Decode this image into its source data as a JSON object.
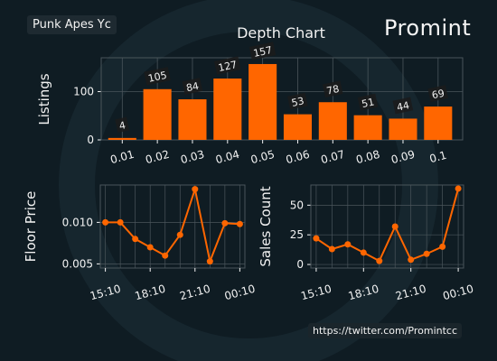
{
  "collection_label": "Punk Apes Yc",
  "brand": "Promint",
  "twitter_url": "https://twitter.com/Promintcc",
  "colors": {
    "accent": "#ff6600",
    "background": "#0f1c23",
    "text": "#f2f2f2",
    "grid": "#4a555b"
  },
  "chart_data": [
    {
      "type": "bar",
      "title": "Depth Chart",
      "ylabel": "Listings",
      "xlabel": "",
      "categories": [
        "0.01",
        "0.02",
        "0.03",
        "0.04",
        "0.05",
        "0.06",
        "0.07",
        "0.08",
        "0.09",
        "0.1"
      ],
      "values": [
        4,
        105,
        84,
        127,
        157,
        53,
        78,
        51,
        44,
        69
      ],
      "ylim": [
        0,
        170
      ],
      "yticks": [
        0,
        100
      ],
      "grid": true
    },
    {
      "type": "line",
      "title": "",
      "ylabel": "Floor Price",
      "xlabel": "",
      "x": [
        "15:10",
        "16:10",
        "17:10",
        "18:10",
        "19:10",
        "20:10",
        "21:10",
        "22:10",
        "23:10",
        "00:10"
      ],
      "xticks": [
        "15:10",
        "18:10",
        "21:10",
        "00:10"
      ],
      "values": [
        0.01,
        0.01,
        0.008,
        0.007,
        0.006,
        0.0085,
        0.014,
        0.0053,
        0.0099,
        0.0098
      ],
      "ylim": [
        0.0045,
        0.0145
      ],
      "yticks": [
        "0.005",
        "0.010"
      ],
      "grid": true
    },
    {
      "type": "line",
      "title": "",
      "ylabel": "Sales Count",
      "xlabel": "",
      "x": [
        "15:10",
        "16:10",
        "17:10",
        "18:10",
        "19:10",
        "20:10",
        "21:10",
        "22:10",
        "23:10",
        "00:10"
      ],
      "xticks": [
        "15:10",
        "18:10",
        "21:10",
        "00:10"
      ],
      "values": [
        22,
        13,
        17,
        10,
        3,
        32,
        4,
        9,
        15,
        64
      ],
      "ylim": [
        -3,
        67
      ],
      "yticks": [
        "0",
        "25",
        "50"
      ],
      "grid": true
    }
  ]
}
